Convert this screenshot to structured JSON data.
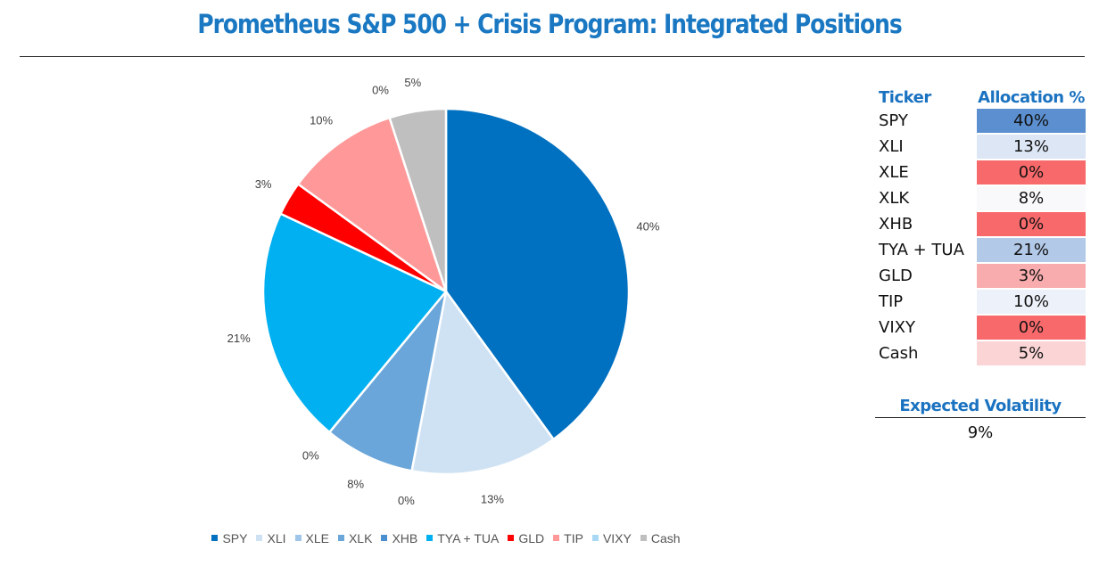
{
  "title": "Prometheus S&P 500 + Crisis Program: Integrated Positions",
  "chart_data": {
    "type": "pie",
    "categories": [
      "SPY",
      "XLI",
      "XLE",
      "XLK",
      "XHB",
      "TYA + TUA",
      "GLD",
      "TIP",
      "VIXY",
      "Cash"
    ],
    "values": [
      40,
      13,
      0,
      8,
      0,
      21,
      3,
      10,
      0,
      5
    ],
    "data_labels": [
      "40%",
      "13%",
      "0%",
      "8%",
      "0%",
      "21%",
      "3%",
      "10%",
      "0%",
      "5%"
    ],
    "colors": [
      "#0070c0",
      "#cfe2f3",
      "#9fc5e8",
      "#6aa6d9",
      "#4a8fd0",
      "#00b0f0",
      "#ff0000",
      "#ff9999",
      "#a9d8f5",
      "#bfbfbf"
    ],
    "legend": [
      "SPY",
      "XLI",
      "XLE",
      "XLK",
      "XHB",
      "TYA + TUA",
      "GLD",
      "TIP",
      "VIXY",
      "Cash"
    ],
    "legend_position": "bottom"
  },
  "table": {
    "headers": [
      "Ticker",
      "Allocation %"
    ],
    "rows": [
      {
        "ticker": "SPY",
        "allocation": "40%",
        "fill": "#5b8fcf"
      },
      {
        "ticker": "XLI",
        "allocation": "13%",
        "fill": "#dce6f4"
      },
      {
        "ticker": "XLE",
        "allocation": "0%",
        "fill": "#f8696b"
      },
      {
        "ticker": "XLK",
        "allocation": "8%",
        "fill": "#f9f9fc"
      },
      {
        "ticker": "XHB",
        "allocation": "0%",
        "fill": "#f8696b"
      },
      {
        "ticker": "TYA + TUA",
        "allocation": "21%",
        "fill": "#b3c9e8"
      },
      {
        "ticker": "GLD",
        "allocation": "3%",
        "fill": "#f9acad"
      },
      {
        "ticker": "TIP",
        "allocation": "10%",
        "fill": "#edf1f9"
      },
      {
        "ticker": "VIXY",
        "allocation": "0%",
        "fill": "#f8696b"
      },
      {
        "ticker": "Cash",
        "allocation": "5%",
        "fill": "#fbd5d6"
      }
    ]
  },
  "volatility": {
    "label": "Expected Volatility",
    "value": "9%"
  }
}
